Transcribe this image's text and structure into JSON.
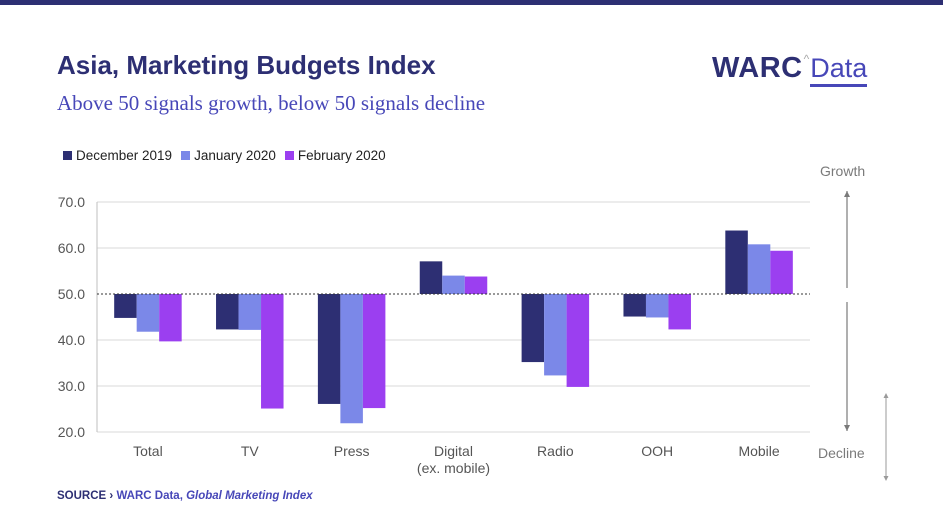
{
  "header": {
    "title": "Asia, Marketing Budgets Index",
    "subtitle": "Above 50 signals growth, below 50 signals decline"
  },
  "logo": {
    "warc": "WARC",
    "caret": "^",
    "data": "Data"
  },
  "side_labels": {
    "growth": "Growth",
    "decline": "Decline"
  },
  "source": {
    "label": "SOURCE ›",
    "publisher": "WARC Data,",
    "publication": "Global Marketing Index"
  },
  "colors": {
    "dec2019": "#2d2f73",
    "jan2020": "#7b88e8",
    "feb2020": "#9b3ff0",
    "title": "#2d2f73",
    "subtitle": "#4747b8",
    "axis_text": "#555555",
    "grid": "#d9d9d9"
  },
  "chart_data": {
    "type": "bar",
    "title": "Asia, Marketing Budgets Index",
    "subtitle": "Above 50 signals growth, below 50 signals decline",
    "baseline": 50,
    "categories": [
      "Total",
      "TV",
      "Press",
      "Digital|(ex. mobile)",
      "Radio",
      "OOH",
      "Mobile"
    ],
    "series": [
      {
        "name": "December 2019",
        "values": [
          44.8,
          42.3,
          26.1,
          57.1,
          35.2,
          45.1,
          63.8
        ]
      },
      {
        "name": "January 2020",
        "values": [
          41.8,
          42.2,
          21.9,
          54.0,
          32.3,
          44.9,
          60.8
        ]
      },
      {
        "name": "February 2020",
        "values": [
          39.7,
          25.1,
          25.2,
          53.8,
          29.8,
          42.3,
          59.4
        ]
      }
    ],
    "ylim": [
      20,
      70
    ],
    "yticks": [
      "20.0",
      "30.0",
      "40.0",
      "50.0",
      "60.0",
      "70.0"
    ],
    "xlabel": "",
    "ylabel": "",
    "grid": true,
    "legend_position": "top-left"
  }
}
